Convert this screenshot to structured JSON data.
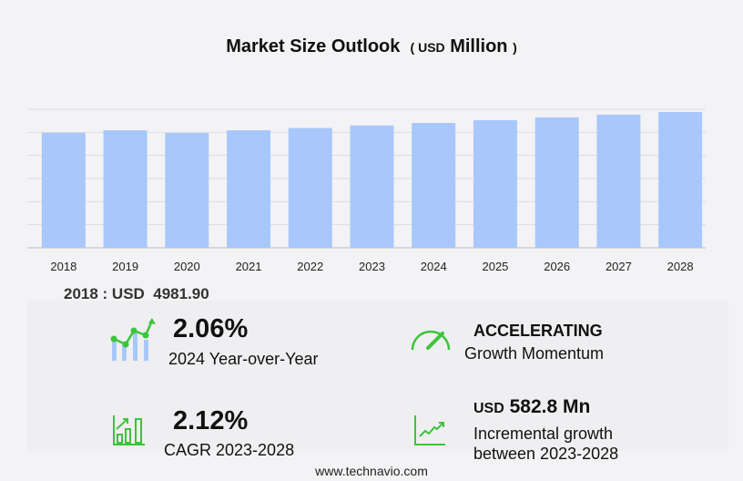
{
  "chart_data": {
    "type": "bar",
    "title": "Market Size Outlook",
    "unit_prefix": "USD",
    "unit": "Million",
    "categories": [
      "2018",
      "2019",
      "2020",
      "2021",
      "2022",
      "2023",
      "2024",
      "2025",
      "2026",
      "2027",
      "2028"
    ],
    "values": [
      4981.9,
      5090,
      4975,
      5090,
      5190,
      5300,
      5409,
      5530,
      5650,
      5770,
      5883
    ],
    "ylim": [
      0,
      6000
    ],
    "grid": true,
    "bar_color": "#a8c8fc"
  },
  "base_label": "2018 : USD  4981.90",
  "stats": {
    "yoy_value": "2.06%",
    "yoy_label": "2024 Year-over-Year",
    "momentum_value": "ACCELERATING",
    "momentum_label": "Growth Momentum",
    "cagr_value": "2.12%",
    "cagr_label": "CAGR 2023-2028",
    "incr_prefix": "USD",
    "incr_value": "582.8 Mn",
    "incr_label1": "Incremental growth",
    "incr_label2": "between 2023-2028"
  },
  "footer": "www.technavio.com",
  "colors": {
    "green": "#3cc43c",
    "bar": "#a8c8fc"
  }
}
